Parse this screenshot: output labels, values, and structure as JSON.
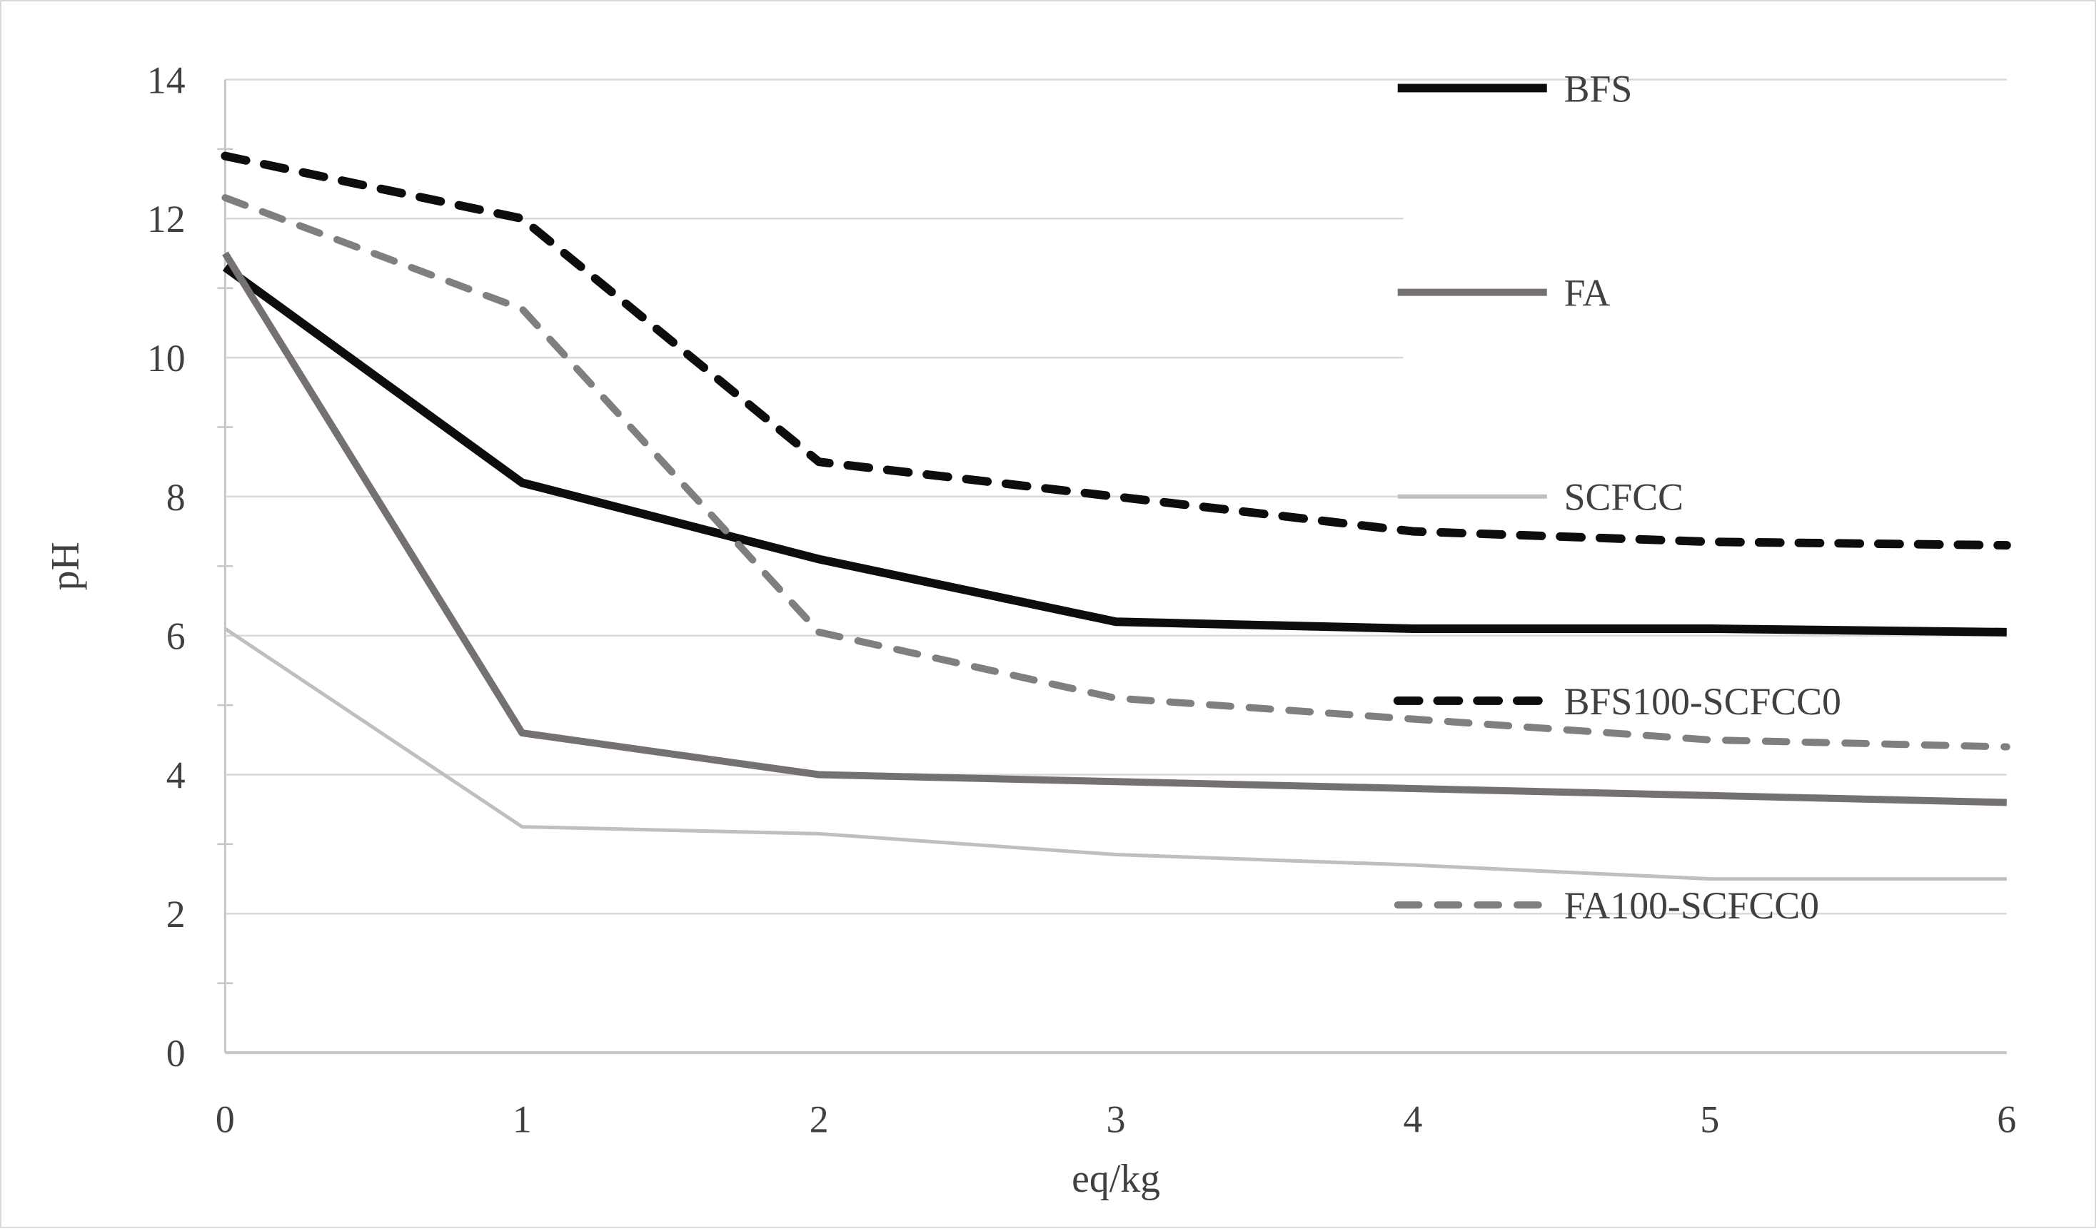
{
  "chart_data": {
    "type": "line",
    "title": "",
    "xlabel": "eq/kg",
    "ylabel": "pH",
    "x": [
      0,
      1,
      2,
      3,
      4,
      5,
      6
    ],
    "xlim": [
      0,
      6
    ],
    "ylim": [
      0,
      14
    ],
    "x_ticks": [
      "0",
      "1",
      "2",
      "3",
      "4",
      "5",
      "6"
    ],
    "y_ticks": [
      "0",
      "2",
      "4",
      "6",
      "8",
      "10",
      "12",
      "14"
    ],
    "grid": "horizontal",
    "legend_position": "inside-right",
    "series": [
      {
        "name": "BFS",
        "style": "solid",
        "color": "#0d0d0d",
        "width": 12,
        "values": [
          11.3,
          8.2,
          7.1,
          6.2,
          6.1,
          6.1,
          6.05
        ]
      },
      {
        "name": "FA",
        "style": "solid",
        "color": "#767171",
        "width": 10,
        "values": [
          11.5,
          4.6,
          4.0,
          3.9,
          3.8,
          3.7,
          3.6
        ]
      },
      {
        "name": "SCFCC",
        "style": "solid",
        "color": "#bfbfbf",
        "width": 5,
        "values": [
          6.1,
          3.25,
          3.15,
          2.85,
          2.7,
          2.5,
          2.5
        ]
      },
      {
        "name": "BFS100-SCFCC0",
        "style": "dashed",
        "color": "#0d0d0d",
        "width": 12,
        "values": [
          12.9,
          12.0,
          8.5,
          8.0,
          7.5,
          7.35,
          7.3
        ]
      },
      {
        "name": "FA100-SCFCC0",
        "style": "dashed",
        "color": "#7f7f7f",
        "width": 10,
        "values": [
          12.3,
          10.7,
          6.05,
          5.1,
          4.8,
          4.5,
          4.4
        ]
      }
    ],
    "colors": {
      "gridline": "#d9d9d9",
      "axis": "#c6c6c6",
      "text": "#404040",
      "background": "#ffffff"
    }
  }
}
